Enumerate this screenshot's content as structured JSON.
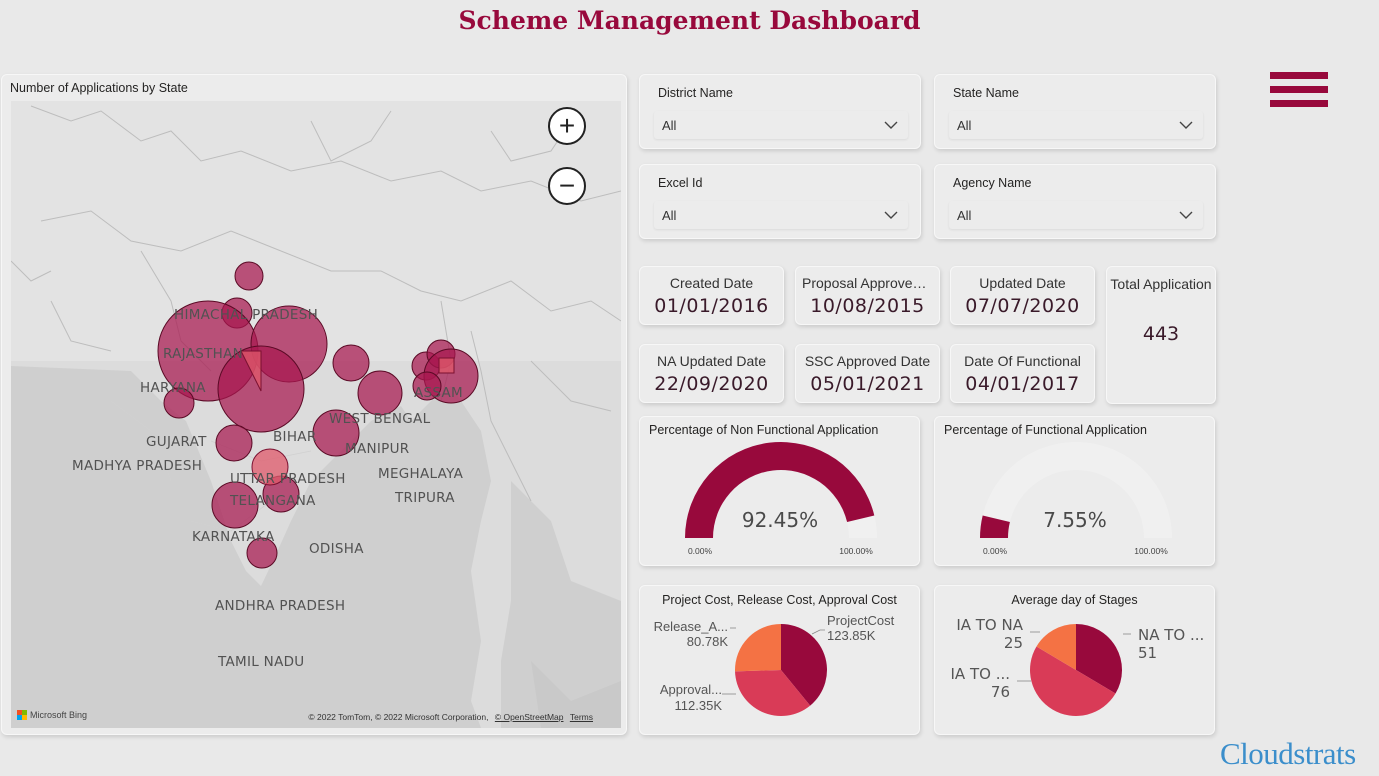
{
  "header": {
    "title": "Scheme Management Dashboard"
  },
  "map": {
    "title": "Number of Applications by State",
    "states": [
      "HIMACHAL PRADESH",
      "RAJASTHAN",
      "HARYANA",
      "GUJARAT",
      "MADHYA PRADESH",
      "UTTAR PRADESH",
      "BIHAR",
      "WEST BENGAL",
      "ASSAM",
      "MANIPUR",
      "MEGHALAYA",
      "TRIPURA",
      "TELANGANA",
      "KARNATAKA",
      "ODISHA",
      "ANDHRA PRADESH",
      "TAMIL NADU"
    ],
    "zoom_in": "+",
    "zoom_out": "−",
    "bing_label": "Microsoft Bing",
    "attribution": "© 2022 TomTom, © 2022 Microsoft Corporation,",
    "osm": "© OpenStreetMap",
    "terms": "Terms",
    "colors": {
      "bubble": "#a8184f",
      "highlight": "#e05a6b"
    }
  },
  "filters": [
    {
      "label": "District Name",
      "value": "All"
    },
    {
      "label": "State Name",
      "value": "All"
    },
    {
      "label": "Excel Id",
      "value": "All"
    },
    {
      "label": "Agency Name",
      "value": "All"
    }
  ],
  "dates": [
    {
      "label": "Created Date",
      "value": "01/01/2016"
    },
    {
      "label": "Proposal Approved Date",
      "value": "10/08/2015"
    },
    {
      "label": "Updated Date",
      "value": "07/07/2020"
    },
    {
      "label": "NA Updated Date",
      "value": "22/09/2020"
    },
    {
      "label": "SSC Approved Date",
      "value": "05/01/2021"
    },
    {
      "label": "Date Of Functional",
      "value": "04/01/2017"
    }
  ],
  "total": {
    "label": "Total Application",
    "value": "443"
  },
  "gauges": [
    {
      "title": "Percentage of Non Functional Application",
      "value_text": "92.45%",
      "value": 92.45,
      "min": "0.00%",
      "max": "100.00%"
    },
    {
      "title": "Percentage of Functional Application",
      "value_text": "7.55%",
      "value": 7.55,
      "min": "0.00%",
      "max": "100.00%"
    }
  ],
  "chart_data": [
    {
      "type": "pie",
      "title": "Project Cost, Release Cost, Approval Cost",
      "categories": [
        "ProjectCost",
        "Approval...",
        "Release_A..."
      ],
      "values": [
        123.85,
        112.35,
        80.78
      ],
      "labels": [
        "123.85K",
        "112.35K",
        "80.78K"
      ],
      "colors": [
        "#98093c",
        "#d93b57",
        "#f47244"
      ]
    },
    {
      "type": "pie",
      "title": "Average day of Stages",
      "categories": [
        "NA TO ...",
        "IA TO ...",
        "IA TO NA"
      ],
      "values": [
        51,
        76,
        25
      ],
      "labels": [
        "51",
        "76",
        "25"
      ],
      "colors": [
        "#98093c",
        "#d93b57",
        "#f47244"
      ]
    }
  ],
  "brand": {
    "logo": "Cloudstrats",
    "accent": "#98093c"
  }
}
